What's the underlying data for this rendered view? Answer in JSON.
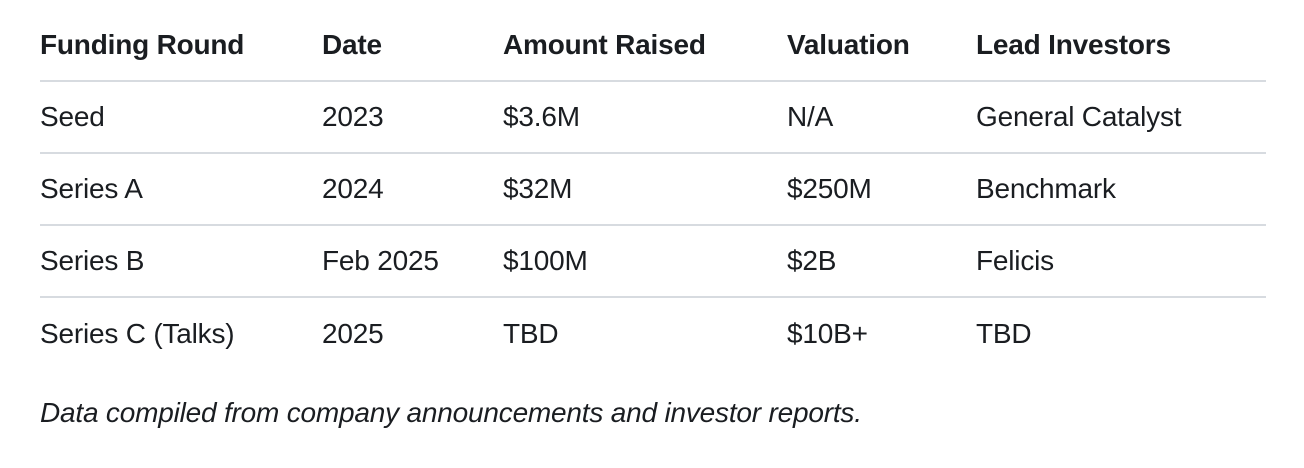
{
  "table": {
    "columns": [
      {
        "label": "Funding Round"
      },
      {
        "label": "Date"
      },
      {
        "label": "Amount Raised"
      },
      {
        "label": "Valuation"
      },
      {
        "label": "Lead Investors"
      }
    ],
    "rows": [
      {
        "funding_round": "Seed",
        "date": "2023",
        "amount_raised": "$3.6M",
        "valuation": "N/A",
        "lead_investors": "General Catalyst"
      },
      {
        "funding_round": "Series A",
        "date": "2024",
        "amount_raised": "$32M",
        "valuation": "$250M",
        "lead_investors": "Benchmark"
      },
      {
        "funding_round": "Series B",
        "date": "Feb 2025",
        "amount_raised": "$100M",
        "valuation": "$2B",
        "lead_investors": "Felicis"
      },
      {
        "funding_round": "Series C (Talks)",
        "date": "2025",
        "amount_raised": "TBD",
        "valuation": "$10B+",
        "lead_investors": "TBD"
      }
    ]
  },
  "footnote": "Data compiled from company announcements and investor reports.",
  "colors": {
    "text": "#1a1d21",
    "divider": "#d7dbe0",
    "background": "#ffffff"
  }
}
